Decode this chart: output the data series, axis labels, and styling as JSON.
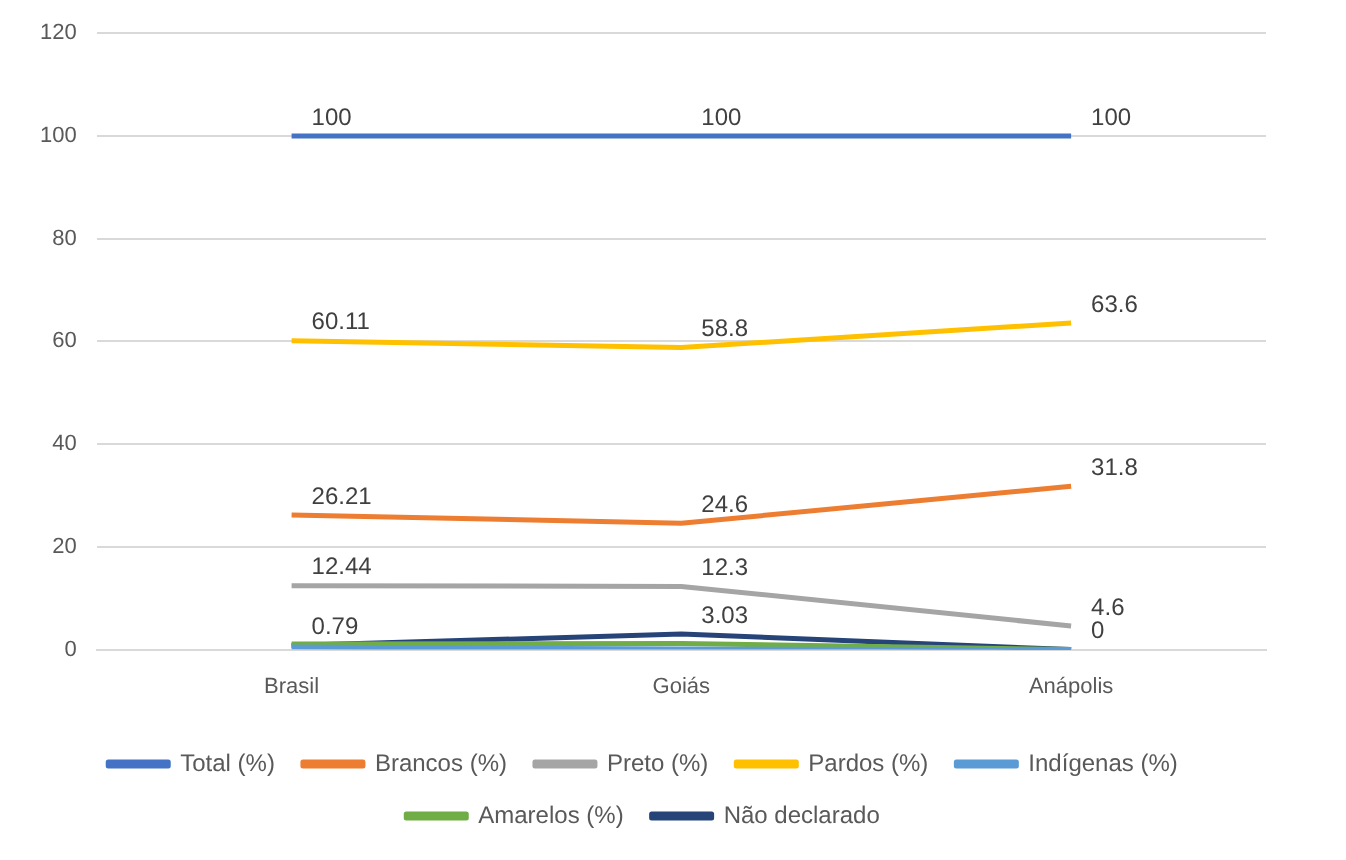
{
  "chart_data": {
    "type": "line",
    "categories": [
      "Brasil",
      "Goiás",
      "Anápolis"
    ],
    "series": [
      {
        "name": "Total (%)",
        "color": "#4472c4",
        "values": [
          100,
          100,
          100
        ],
        "value_labels": [
          "100",
          "100",
          "100"
        ]
      },
      {
        "name": "Brancos (%)",
        "color": "#ed7d31",
        "values": [
          26.21,
          24.6,
          31.8
        ],
        "value_labels": [
          "26.21",
          "24.6",
          "31.8"
        ]
      },
      {
        "name": "Preto (%)",
        "color": "#a5a5a5",
        "values": [
          12.44,
          12.3,
          4.6
        ],
        "value_labels": [
          "12.44",
          "12.3",
          "4.6"
        ]
      },
      {
        "name": "Pardos (%)",
        "color": "#ffc000",
        "values": [
          60.11,
          58.8,
          63.6
        ],
        "value_labels": [
          "60.11",
          "58.8",
          "63.6"
        ]
      },
      {
        "name": "Indígenas (%)",
        "color": "#5b9bd5",
        "values": [
          0.5,
          0.1,
          0
        ],
        "value_labels": [
          null,
          null,
          null
        ]
      },
      {
        "name": "Amarelos (%)",
        "color": "#70ad47",
        "values": [
          1.1,
          1.2,
          0
        ],
        "value_labels": [
          null,
          null,
          null
        ]
      },
      {
        "name": "Não declarado",
        "color": "#264478",
        "values": [
          0.79,
          3.03,
          0
        ],
        "value_labels": [
          "0.79",
          "3.03",
          "0"
        ]
      }
    ],
    "ylim": [
      0,
      120
    ],
    "yticks": [
      0,
      20,
      40,
      60,
      80,
      100,
      120
    ],
    "grid": "y",
    "legend": "bottom",
    "marker": "none",
    "line_style": "solid"
  }
}
